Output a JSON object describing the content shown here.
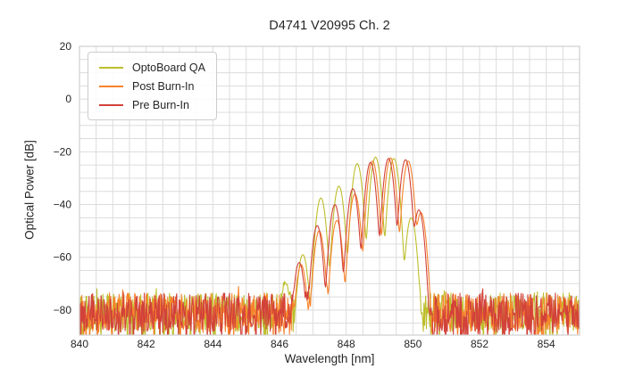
{
  "window": {
    "title": "D4741 V20995 Ch. 2"
  },
  "chart_data": {
    "type": "line",
    "title": "D4741 V20995 Ch. 2",
    "xlabel": "Wavelength [nm]",
    "ylabel": "Optical Power [dB]",
    "xlim": [
      840,
      855
    ],
    "ylim": [
      -89.5,
      20
    ],
    "x_ticks": [
      840,
      842,
      844,
      846,
      848,
      850,
      852,
      854
    ],
    "x_tick_labels": [
      "840",
      "842",
      "844",
      "846",
      "848",
      "850",
      "852",
      "854"
    ],
    "y_ticks": [
      20,
      0,
      -20,
      -40,
      -60,
      -80
    ],
    "y_tick_labels": [
      "20",
      "0",
      "−20",
      "−40",
      "−60",
      "−80"
    ],
    "x_minor_step": 0.5,
    "y_minor_step": 5,
    "grid": true,
    "grid_color": "#dcdcdc",
    "frame_color": "#cfcfcf",
    "background_color": "#ffffff",
    "text_color": "#262626",
    "legend_position": "upper left",
    "mode_sigma_nm": 0.1,
    "noise_floor_db": {
      "typical_top": -73.5,
      "typical_bottom": -88.5,
      "spike_chance": 0.1,
      "spike_extra_db": -9,
      "pop_chance": 0.97,
      "pop_extra_db": 2.5
    },
    "sample_step_nm": 0.018,
    "series": [
      {
        "id": "optoboard-qa",
        "name": "OptoBoard QA",
        "color": "#bdbe2c",
        "seed": 7,
        "modes": [
          [
            846.18,
            -70
          ],
          [
            846.7,
            -59
          ],
          [
            847.24,
            -37.5
          ],
          [
            847.78,
            -33
          ],
          [
            848.33,
            -24.5
          ],
          [
            848.88,
            -22
          ],
          [
            849.43,
            -22.5
          ],
          [
            849.95,
            -45
          ]
        ]
      },
      {
        "id": "post-burn-in",
        "name": "Post Burn-In",
        "color": "#f8832c",
        "seed": 13,
        "modes": [
          [
            846.65,
            -63
          ],
          [
            847.19,
            -50
          ],
          [
            847.72,
            -46
          ],
          [
            848.26,
            -36
          ],
          [
            848.79,
            -23.5
          ],
          [
            849.33,
            -22.3
          ],
          [
            849.86,
            -23.5
          ],
          [
            850.24,
            -43
          ]
        ]
      },
      {
        "id": "pre-burn-in",
        "name": "Pre Burn-In",
        "color": "#d2423a",
        "seed": 29,
        "modes": [
          [
            846.59,
            -62
          ],
          [
            847.13,
            -48
          ],
          [
            847.66,
            -40
          ],
          [
            848.2,
            -34
          ],
          [
            848.73,
            -24
          ],
          [
            849.27,
            -22.5
          ],
          [
            849.78,
            -23
          ],
          [
            850.18,
            -42
          ]
        ]
      }
    ]
  }
}
